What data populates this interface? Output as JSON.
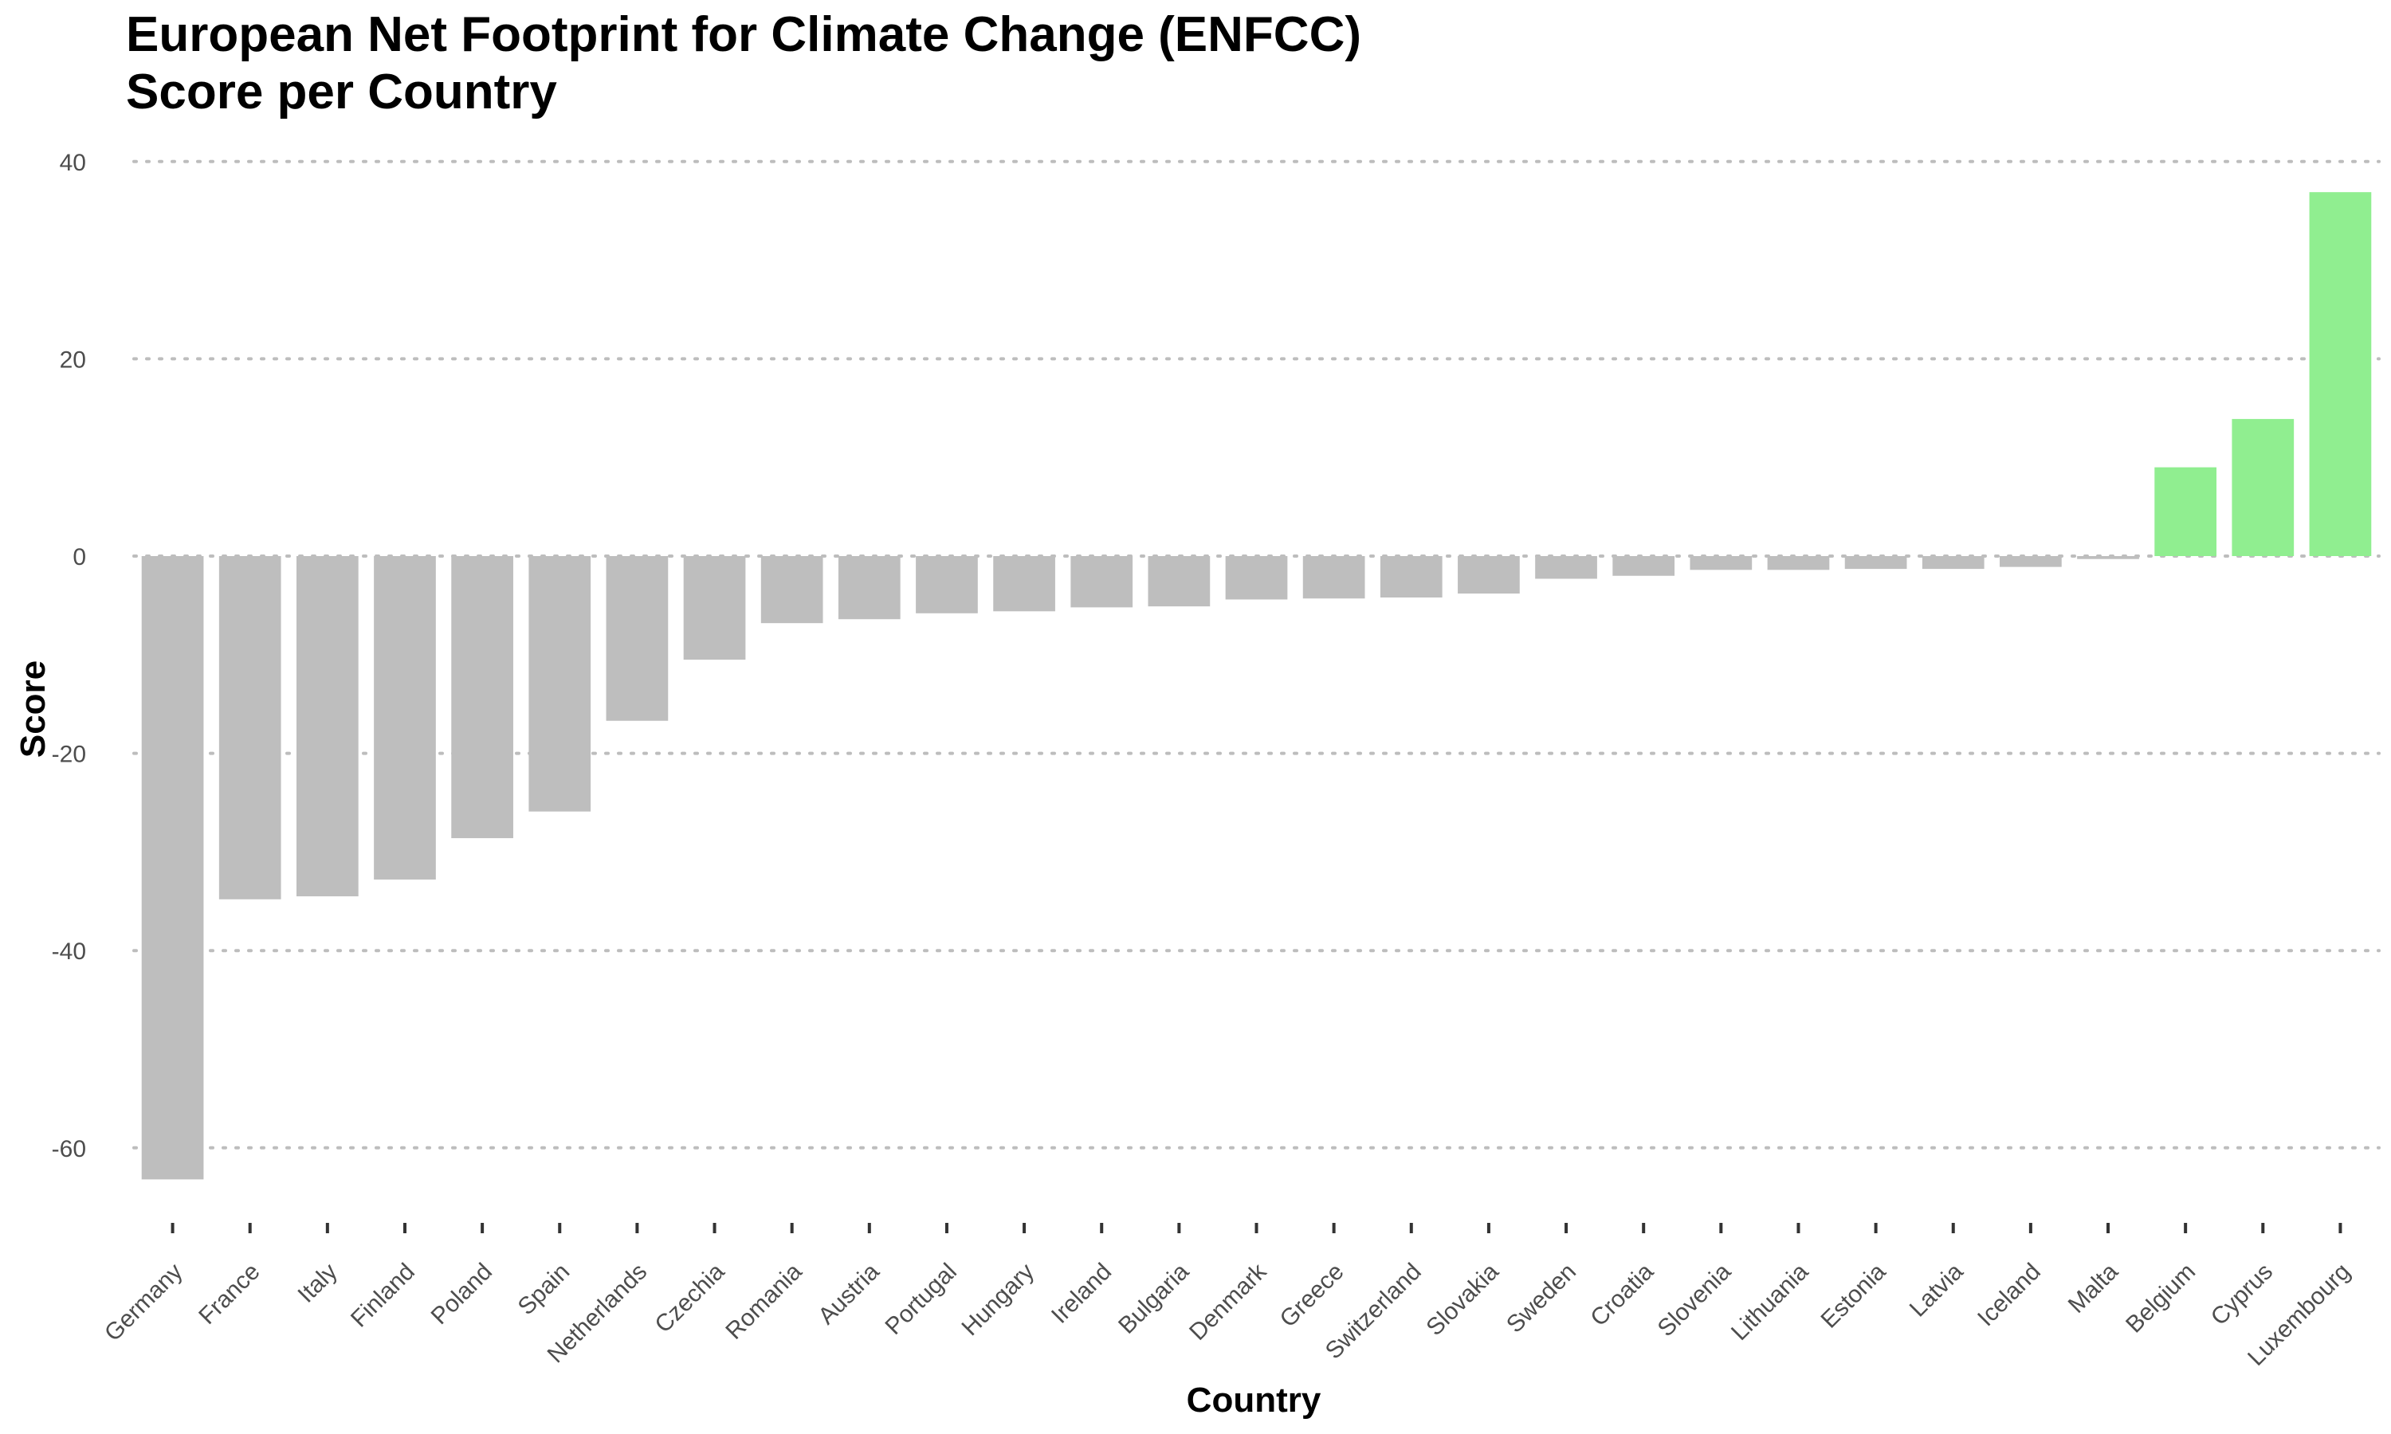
{
  "title_lines": [
    "European Net Footprint for Climate Change (ENFCC)",
    "Score per Country"
  ],
  "chart_data": {
    "type": "bar",
    "title": "European Net Footprint for Climate Change (ENFCC)\nScore per Country",
    "xlabel": "Country",
    "ylabel": "Score",
    "ylim": [
      -67,
      41
    ],
    "y_ticks": [
      40,
      20,
      0,
      -20,
      -40,
      -60
    ],
    "y_tick_labels": [
      "40",
      "20",
      "0",
      "-20",
      "-40",
      "-60"
    ],
    "grid": "horizontal dotted",
    "categories": [
      "Germany",
      "France",
      "Italy",
      "Finland",
      "Poland",
      "Spain",
      "Netherlands",
      "Czechia",
      "Romania",
      "Austria",
      "Portugal",
      "Hungary",
      "Ireland",
      "Bulgaria",
      "Denmark",
      "Greece",
      "Switzerland",
      "Slovakia",
      "Sweden",
      "Croatia",
      "Slovenia",
      "Lithuania",
      "Estonia",
      "Latvia",
      "Iceland",
      "Malta",
      "Belgium",
      "Cyprus",
      "Luxembourg"
    ],
    "values": [
      -63.2,
      -34.8,
      -34.5,
      -32.8,
      -28.6,
      -25.9,
      -16.7,
      -10.5,
      -6.8,
      -6.4,
      -5.8,
      -5.6,
      -5.2,
      -5.1,
      -4.4,
      -4.3,
      -4.2,
      -3.8,
      -2.3,
      -2.0,
      -1.4,
      -1.4,
      -1.3,
      -1.3,
      -1.1,
      -0.3,
      9.0,
      13.9,
      36.9
    ],
    "colors": {
      "negative": "#bebebe",
      "positive": "#90ee90",
      "grid": "#bdbdbd"
    }
  }
}
